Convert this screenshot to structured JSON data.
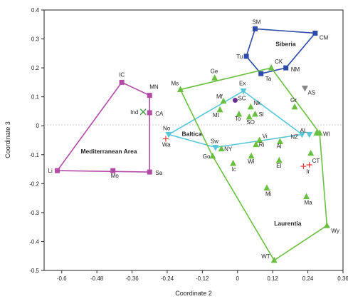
{
  "chart_data": {
    "type": "scatter",
    "xlabel": "Coordinate 2",
    "ylabel": "Coordinate 3",
    "xlim": [
      -0.66,
      0.36
    ],
    "ylim": [
      -0.5,
      0.4
    ],
    "xticks": [
      "-0.6",
      "-0.48",
      "-0.36",
      "-0.24",
      "-0.12",
      "0",
      "0.12",
      "0.24",
      "0.36"
    ],
    "yticks": [
      "0.4",
      "0.3",
      "0.2",
      "0.1",
      "0",
      "-0.1",
      "-0.2",
      "-0.3",
      "-0.4",
      "-0.5"
    ],
    "colors": {
      "mediterranean": "#b34aa6",
      "siberia": "#2c4aa8",
      "baltica": "#58c6d8",
      "laurentia": "#6abf40",
      "other_cross": "#e33b3b",
      "sc_point": "#6a2e8e",
      "as_point": "#888888",
      "ind_point": "#3f9a3f"
    },
    "groups": [
      {
        "name": "Mediterranean Area",
        "color": "#b34aa6",
        "marker": "square",
        "hull": [
          "Li",
          "IC",
          "MN",
          "CA",
          "Sa",
          "Li"
        ],
        "points": [
          {
            "label": "IC",
            "x": -0.395,
            "y": 0.15
          },
          {
            "label": "MN",
            "x": -0.3,
            "y": 0.105
          },
          {
            "label": "CA",
            "x": -0.3,
            "y": 0.045
          },
          {
            "label": "Sa",
            "x": -0.3,
            "y": -0.16
          },
          {
            "label": "Mo",
            "x": -0.425,
            "y": -0.155
          },
          {
            "label": "Li",
            "x": -0.615,
            "y": -0.155
          }
        ]
      },
      {
        "name": "Siberia",
        "color": "#2c4aa8",
        "marker": "square",
        "hull": [
          "SM",
          "CM",
          "NM",
          "Ta",
          "Tu",
          "SM"
        ],
        "points": [
          {
            "label": "SM",
            "x": 0.06,
            "y": 0.335
          },
          {
            "label": "CM",
            "x": 0.265,
            "y": 0.32
          },
          {
            "label": "NM",
            "x": 0.165,
            "y": 0.2
          },
          {
            "label": "Tu",
            "x": 0.03,
            "y": 0.24
          },
          {
            "label": "Ta",
            "x": 0.08,
            "y": 0.18
          }
        ]
      },
      {
        "name": "Baltica",
        "color": "#58c6d8",
        "marker": "triangle-down",
        "hull": [
          "Ex",
          "NZ",
          "Sw",
          "No",
          "Ex"
        ],
        "points": [
          {
            "label": "Ex",
            "x": 0.02,
            "y": 0.12
          },
          {
            "label": "NZ",
            "x": 0.22,
            "y": -0.03
          },
          {
            "label": "No",
            "x": -0.235,
            "y": -0.03
          },
          {
            "label": "Sw",
            "x": -0.075,
            "y": -0.075
          },
          {
            "label": "AL",
            "x": 0.245,
            "y": -0.03
          }
        ]
      },
      {
        "name": "Laurentia",
        "color": "#6abf40",
        "marker": "triangle",
        "hull": [
          "Ms",
          "CK",
          "WI",
          "Wy",
          "WT",
          "Go",
          "Ms"
        ],
        "points": [
          {
            "label": "Ms",
            "x": -0.195,
            "y": 0.125
          },
          {
            "label": "Ge",
            "x": -0.078,
            "y": 0.165
          },
          {
            "label": "CK",
            "x": 0.115,
            "y": 0.2
          },
          {
            "label": "Mf",
            "x": -0.048,
            "y": 0.085
          },
          {
            "label": "Mt",
            "x": -0.06,
            "y": 0.055
          },
          {
            "label": "To",
            "x": 0.005,
            "y": 0.04
          },
          {
            "label": "Nk",
            "x": 0.045,
            "y": 0.065
          },
          {
            "label": "Sl",
            "x": 0.06,
            "y": 0.04
          },
          {
            "label": "SO",
            "x": 0.04,
            "y": 0.03
          },
          {
            "label": "Gr",
            "x": 0.195,
            "y": 0.065
          },
          {
            "label": "Vi",
            "x": 0.075,
            "y": -0.05
          },
          {
            "label": "Ri",
            "x": 0.063,
            "y": -0.065
          },
          {
            "label": "Al",
            "x": 0.145,
            "y": -0.055
          },
          {
            "label": "Wi",
            "x": 0.047,
            "y": -0.105
          },
          {
            "label": "El",
            "x": 0.142,
            "y": -0.12
          },
          {
            "label": "Ic",
            "x": -0.015,
            "y": -0.13
          },
          {
            "label": "NY",
            "x": -0.055,
            "y": -0.08
          },
          {
            "label": "Go",
            "x": -0.085,
            "y": -0.105
          },
          {
            "label": "WI",
            "x": 0.28,
            "y": -0.025
          },
          {
            "label": "Mi",
            "x": 0.1,
            "y": -0.215
          },
          {
            "label": "Ma",
            "x": 0.235,
            "y": -0.245
          },
          {
            "label": "Wy",
            "x": 0.305,
            "y": -0.345
          },
          {
            "label": "WT",
            "x": 0.125,
            "y": -0.465
          },
          {
            "label": "",
            "x": 0.27,
            "y": -0.025
          },
          {
            "label": "",
            "x": 0.25,
            "y": -0.095
          }
        ]
      }
    ],
    "extra_points": [
      {
        "label": "SC",
        "x": -0.008,
        "y": 0.088,
        "marker": "circle",
        "color": "#6a2e8e"
      },
      {
        "label": "AS",
        "x": 0.23,
        "y": 0.13,
        "marker": "triangle-down",
        "color": "#888888"
      },
      {
        "label": "Ind",
        "x": -0.322,
        "y": 0.048,
        "marker": "x",
        "color": "#3f9a3f"
      },
      {
        "label": "Wa",
        "x": -0.245,
        "y": -0.045,
        "marker": "cross",
        "color": "#e33b3b"
      },
      {
        "label": "CT",
        "x": 0.245,
        "y": -0.135,
        "marker": "cross",
        "color": "#e33b3b"
      },
      {
        "label": "Ir",
        "x": 0.225,
        "y": -0.14,
        "marker": "cross",
        "color": "#e33b3b"
      }
    ]
  }
}
